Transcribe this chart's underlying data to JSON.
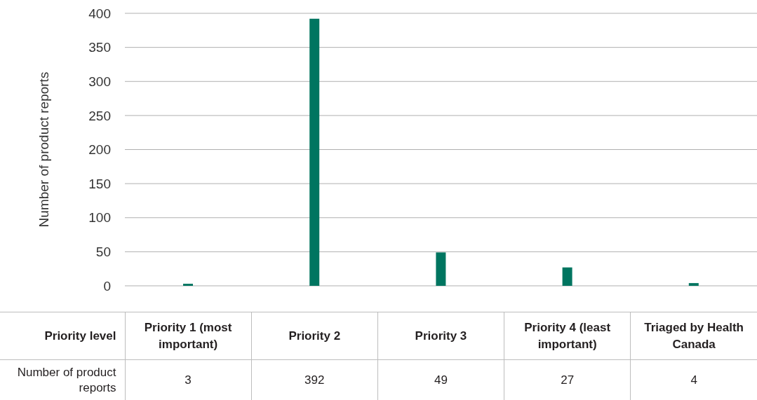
{
  "chart_data": {
    "type": "bar",
    "ylabel": "Number of product reports",
    "xlabel": "Priority level",
    "annotations": [
      "Number of product reports"
    ],
    "categories": [
      "Priority 1 (most important)",
      "Priority 2",
      "Priority 3",
      "Priority 4 (least important)",
      "Triaged by Health Canada"
    ],
    "values": [
      3,
      392,
      49,
      27,
      4
    ],
    "color": "#007560",
    "ylim": [
      0,
      400
    ],
    "yticks": [
      0,
      50,
      100,
      150,
      200,
      250,
      300,
      350,
      400
    ],
    "grid": "y",
    "data_labels": true
  }
}
